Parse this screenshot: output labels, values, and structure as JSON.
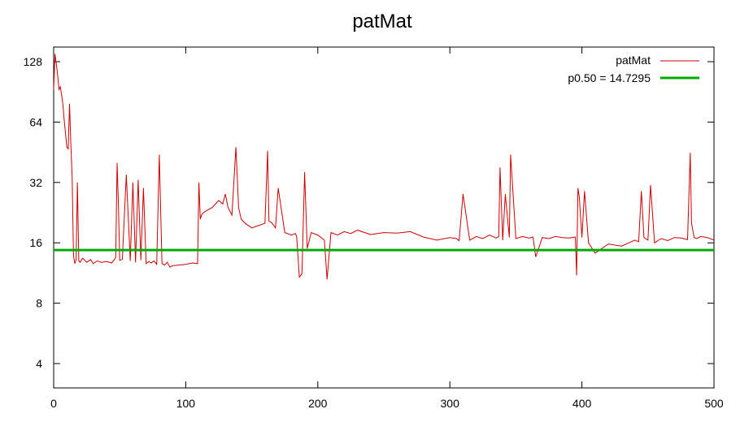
{
  "chart_data": {
    "type": "line",
    "title": "patMat",
    "xlabel": "",
    "ylabel": "",
    "xlim": [
      0,
      500
    ],
    "ylim_log2": [
      3,
      144
    ],
    "y_scale": "log2",
    "x_ticks": [
      0,
      100,
      200,
      300,
      400,
      500
    ],
    "y_ticks": [
      4,
      8,
      16,
      32,
      64,
      128
    ],
    "grid": false,
    "legend_position": "top-right",
    "colors": {
      "series": "#cc0000",
      "median": "#00aa00",
      "axis": "#000000"
    },
    "series": [
      {
        "name": "patMat",
        "x": [
          0,
          1,
          2,
          3,
          4,
          5,
          6,
          7,
          8,
          9,
          10,
          11,
          12,
          13,
          14,
          15,
          16,
          17,
          18,
          19,
          20,
          22,
          25,
          28,
          30,
          33,
          36,
          40,
          44,
          47,
          48,
          49,
          50,
          52,
          55,
          58,
          60,
          62,
          64,
          66,
          68,
          70,
          72,
          74,
          76,
          78,
          80,
          82,
          84,
          86,
          88,
          90,
          95,
          100,
          105,
          109,
          110,
          111,
          112,
          113,
          115,
          120,
          125,
          128,
          130,
          132,
          135,
          138,
          140,
          142,
          145,
          150,
          155,
          160,
          162,
          163,
          165,
          168,
          170,
          175,
          180,
          183,
          184,
          186,
          188,
          190,
          192,
          195,
          200,
          205,
          207,
          210,
          215,
          220,
          225,
          230,
          240,
          250,
          260,
          270,
          280,
          290,
          300,
          305,
          307,
          310,
          315,
          320,
          325,
          330,
          335,
          337,
          338,
          340,
          342,
          345,
          346,
          350,
          355,
          360,
          363,
          365,
          370,
          375,
          380,
          385,
          390,
          395,
          396,
          397,
          398,
          400,
          402,
          405,
          410,
          420,
          430,
          440,
          443,
          445,
          447,
          450,
          452,
          455,
          460,
          465,
          470,
          475,
          480,
          482,
          483,
          485,
          487,
          490,
          495,
          500
        ],
        "values": [
          93,
          140,
          125,
          110,
          93,
          96,
          88,
          78,
          65,
          56,
          48,
          47,
          79,
          50,
          34,
          13.8,
          12.6,
          13.2,
          32,
          13,
          12.8,
          13.4,
          12.8,
          13.2,
          12.6,
          13.0,
          12.8,
          12.9,
          12.7,
          13.5,
          40,
          25,
          13.1,
          13.2,
          35,
          13.0,
          32,
          12.8,
          33,
          13.1,
          30,
          12.6,
          12.9,
          12.7,
          13.0,
          12.5,
          44,
          12.6,
          12.4,
          12.8,
          12.1,
          12.3,
          12.4,
          12.5,
          12.7,
          12.6,
          32,
          21,
          22,
          22.5,
          23,
          24,
          26,
          25,
          28,
          24,
          22,
          48,
          24,
          21,
          20,
          19,
          19.5,
          20,
          46,
          20.5,
          20.2,
          19,
          30,
          18,
          17.5,
          17.8,
          17.2,
          10.8,
          11.2,
          36,
          15,
          18,
          17.5,
          16.5,
          10.5,
          18,
          17.5,
          18.2,
          17.8,
          18.5,
          17.6,
          18.0,
          17.9,
          18.2,
          17.1,
          16.5,
          17.0,
          16.8,
          16.4,
          28,
          16.5,
          17.2,
          16.8,
          17.5,
          16.9,
          17.2,
          38,
          16.5,
          28,
          17.0,
          44,
          16.8,
          17.2,
          16.9,
          17.1,
          13.6,
          17.0,
          16.8,
          17.2,
          17.0,
          16.9,
          17.1,
          11,
          30,
          27,
          17,
          29,
          16,
          14.2,
          15.8,
          15.4,
          16.5,
          16.2,
          29,
          17,
          16.5,
          31,
          16,
          16.8,
          16.4,
          17.0,
          16.9,
          16.6,
          45,
          20,
          17.0,
          16.8,
          17.2,
          17.0,
          16.5
        ]
      },
      {
        "name": "p0.50 = 14.7295",
        "value": 14.7295
      }
    ]
  }
}
